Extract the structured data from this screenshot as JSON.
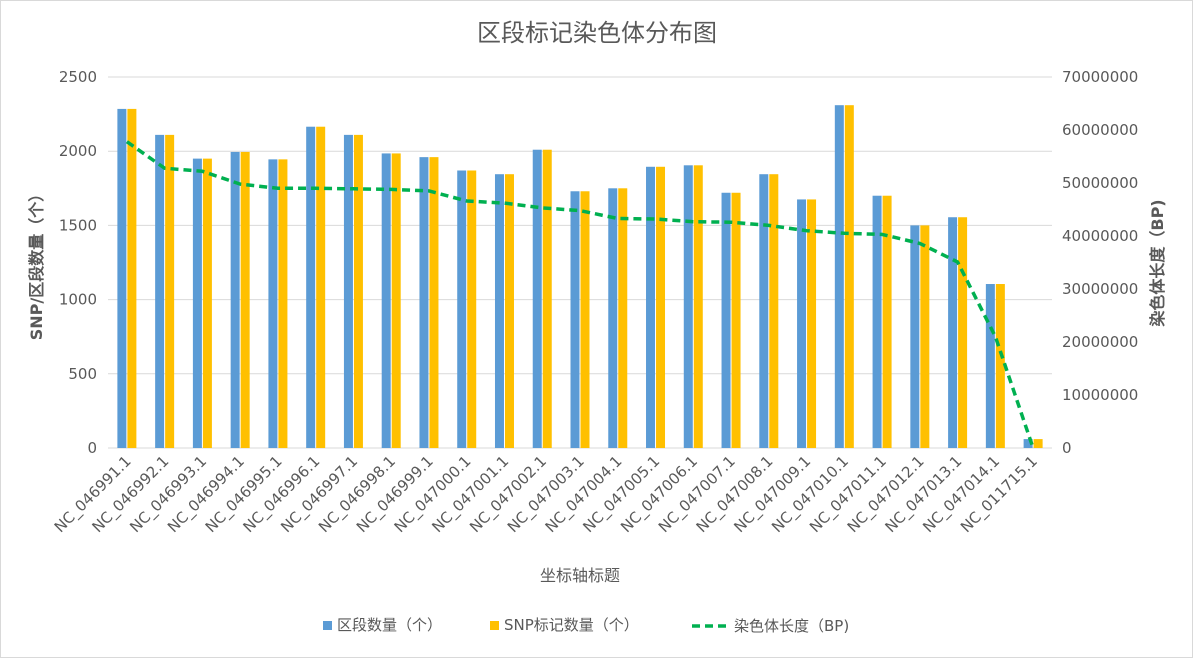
{
  "chart_data": {
    "type": "bar",
    "title": "区段标记染色体分布图",
    "xlabel": "坐标轴标题",
    "ylabel": "SNP/区段数量（个）",
    "y2label": "染色体长度（BP)",
    "ylim": [
      0,
      2500
    ],
    "y2lim": [
      0,
      70000000
    ],
    "yticks": [
      "0",
      "500",
      "1000",
      "1500",
      "2000",
      "2500"
    ],
    "y2ticks": [
      "0",
      "10000000",
      "20000000",
      "30000000",
      "40000000",
      "50000000",
      "60000000",
      "70000000"
    ],
    "categories": [
      "NC_046991.1",
      "NC_046992.1",
      "NC_046993.1",
      "NC_046994.1",
      "NC_046995.1",
      "NC_046996.1",
      "NC_046997.1",
      "NC_046998.1",
      "NC_046999.1",
      "NC_047000.1",
      "NC_047001.1",
      "NC_047002.1",
      "NC_047003.1",
      "NC_047004.1",
      "NC_047005.1",
      "NC_047006.1",
      "NC_047007.1",
      "NC_047008.1",
      "NC_047009.1",
      "NC_047010.1",
      "NC_047011.1",
      "NC_047012.1",
      "NC_047013.1",
      "NC_047014.1",
      "NC_011715.1"
    ],
    "series": [
      {
        "name": "区段数量（个）",
        "type": "bar",
        "axis": "left",
        "color": "#5b9bd5",
        "values": [
          2285,
          2110,
          1950,
          1995,
          1945,
          2165,
          2110,
          1985,
          1960,
          1870,
          1845,
          2010,
          1730,
          1750,
          1895,
          1905,
          1720,
          1845,
          1675,
          2310,
          1700,
          1500,
          1555,
          1105,
          60
        ]
      },
      {
        "name": "SNP标记数量（个）",
        "type": "bar",
        "axis": "left",
        "color": "#ffc000",
        "values": [
          2285,
          2110,
          1950,
          1995,
          1945,
          2165,
          2110,
          1985,
          1960,
          1870,
          1845,
          2010,
          1730,
          1750,
          1895,
          1905,
          1720,
          1845,
          1675,
          2310,
          1700,
          1500,
          1555,
          1105,
          60
        ]
      },
      {
        "name": "染色体长度（BP)",
        "type": "line",
        "style": "dashed",
        "axis": "right",
        "color": "#00b050",
        "values": [
          57800000,
          52800000,
          52200000,
          49800000,
          49000000,
          49000000,
          48900000,
          48800000,
          48500000,
          46600000,
          46200000,
          45300000,
          44800000,
          43300000,
          43200000,
          42700000,
          42600000,
          42000000,
          41000000,
          40500000,
          40300000,
          38600000,
          35100000,
          21000000,
          0
        ]
      }
    ],
    "grid": true,
    "legend_position": "bottom"
  }
}
